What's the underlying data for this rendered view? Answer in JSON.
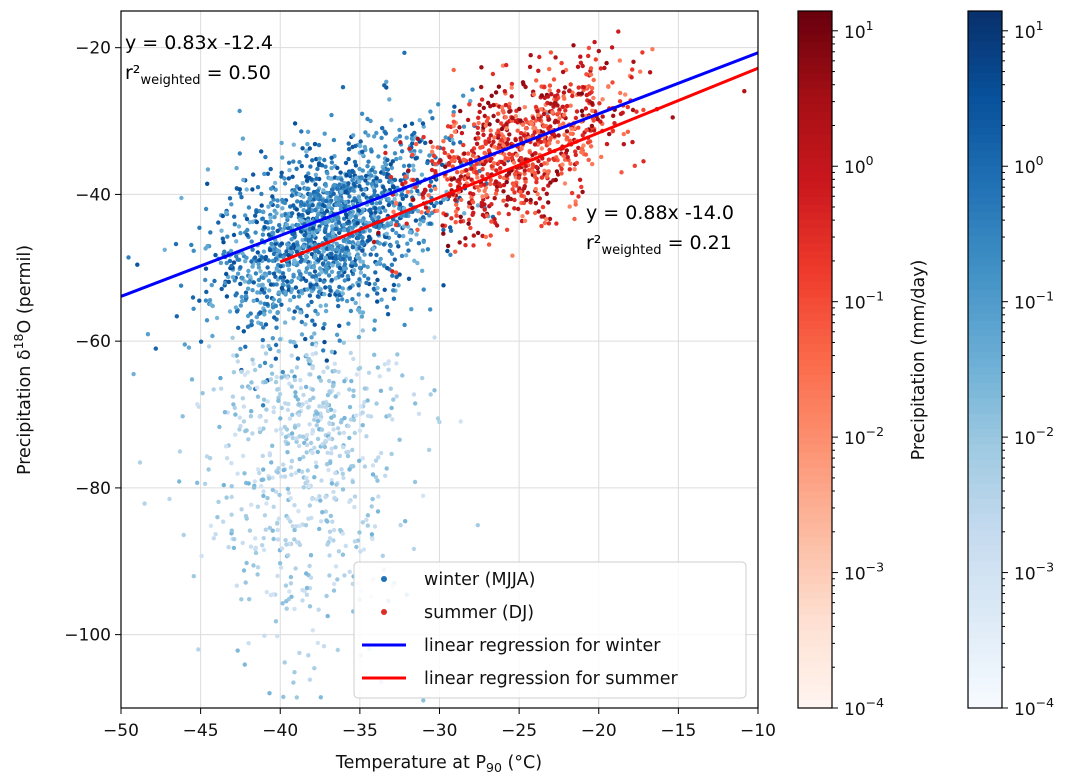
{
  "chart_data": {
    "type": "scatter",
    "xlabel": "Temperature at P",
    "xlabel_sub": "90",
    "xlabel_unit": " (°C)",
    "ylabel_main": "Precipitation δ",
    "ylabel_sup": "18",
    "ylabel_rest": "O (permil)",
    "xlim": [
      -50,
      -10
    ],
    "ylim": [
      -110,
      -15
    ],
    "xticks": [
      -50,
      -45,
      -40,
      -35,
      -30,
      -25,
      -20,
      -15,
      -10
    ],
    "yticks": [
      -100,
      -80,
      -60,
      -40,
      -20
    ],
    "grid": true,
    "legend_position": "lower right",
    "series": [
      {
        "name": "winter (MJJA)",
        "kind": "scatter",
        "color": "#2171b5",
        "colormap": "Blues",
        "x_range": [
          -47.5,
          -18
        ],
        "center": [
          -37,
          -42
        ],
        "y_spread": "approximately -108 to -17 permil",
        "note": "low-precipitation (light) points extend down to about -108 permil between -45 and -30 °C"
      },
      {
        "name": "summer (DJ)",
        "kind": "scatter",
        "color": "#de2d26",
        "colormap": "Reds",
        "x_range": [
          -33,
          -15
        ],
        "center": [
          -25,
          -37
        ],
        "y_spread": "approximately -48 to -15 permil"
      },
      {
        "name": "linear regression for winter",
        "kind": "line",
        "color": "#0000ff",
        "slope": 0.83,
        "intercept": -12.4,
        "x_range": [
          -50,
          -10
        ]
      },
      {
        "name": "linear regression for summer",
        "kind": "line",
        "color": "#ff0000",
        "slope": 0.88,
        "intercept": -14.0,
        "x_range": [
          -40,
          -10
        ]
      }
    ],
    "annotations": {
      "winter": {
        "eq": "y = 0.83x -12.4",
        "r_prefix": "r²",
        "r_sub": "weighted",
        "r_value": " = 0.50"
      },
      "summer": {
        "eq": "y = 0.88x -14.0",
        "r_prefix": "r²",
        "r_sub": "weighted",
        "r_value": " = 0.21"
      }
    },
    "colorbars": [
      {
        "colormap": "Reds",
        "label": "Precipitation (mm/day)",
        "scale": "log",
        "range": [
          0.0001,
          14
        ],
        "tick_labels": [
          {
            "base": "10",
            "exp": "1",
            "value": 10
          },
          {
            "base": "10",
            "exp": "0",
            "value": 1
          },
          {
            "base": "10",
            "exp": "−1",
            "value": 0.1
          },
          {
            "base": "10",
            "exp": "−2",
            "value": 0.01
          },
          {
            "base": "10",
            "exp": "−3",
            "value": 0.001
          },
          {
            "base": "10",
            "exp": "−4",
            "value": 0.0001
          }
        ],
        "colors": [
          "#fff5f0",
          "#fee0d2",
          "#fcbba1",
          "#fc9272",
          "#fb6a4a",
          "#ef3b2c",
          "#cb181d",
          "#a50f15",
          "#67000d"
        ]
      },
      {
        "colormap": "Blues",
        "label": "",
        "scale": "log",
        "range": [
          0.0001,
          14
        ],
        "tick_labels": [
          {
            "base": "10",
            "exp": "1",
            "value": 10
          },
          {
            "base": "10",
            "exp": "0",
            "value": 1
          },
          {
            "base": "10",
            "exp": "−1",
            "value": 0.1
          },
          {
            "base": "10",
            "exp": "−2",
            "value": 0.01
          },
          {
            "base": "10",
            "exp": "−3",
            "value": 0.001
          },
          {
            "base": "10",
            "exp": "−4",
            "value": 0.0001
          }
        ],
        "colors": [
          "#f7fbff",
          "#deebf7",
          "#c6dbef",
          "#9ecae1",
          "#6baed6",
          "#4292c6",
          "#2171b5",
          "#08519c",
          "#08306b"
        ]
      }
    ]
  }
}
